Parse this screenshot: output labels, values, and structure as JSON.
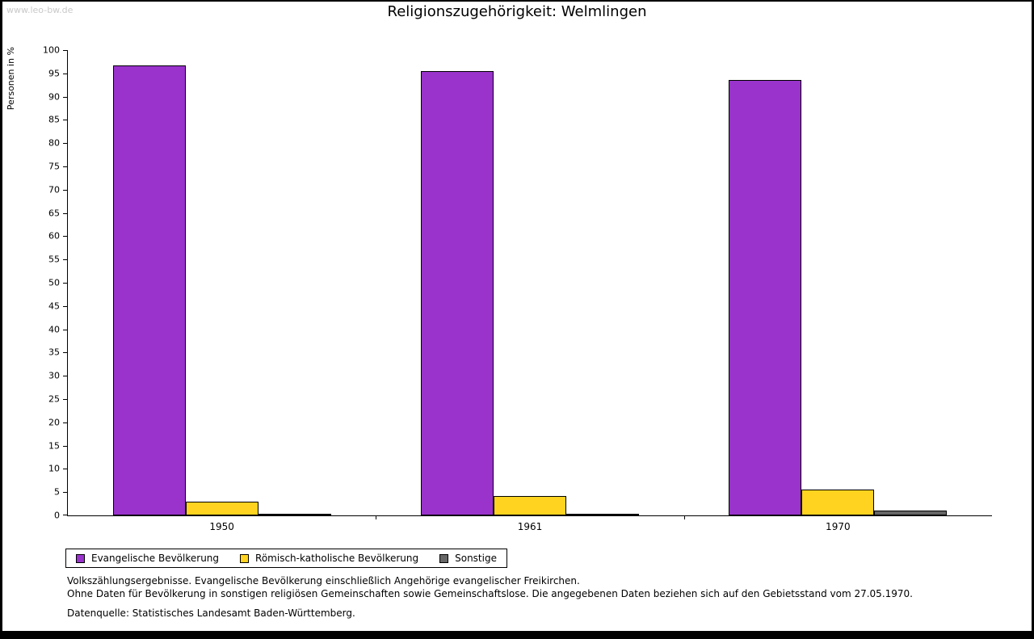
{
  "watermark": "www.leo-bw.de",
  "title": "Religionszugehörigkeit: Welmlingen",
  "chart_data": {
    "type": "bar",
    "title": "Religionszugehörigkeit: Welmlingen",
    "xlabel": "",
    "ylabel": "Personen in %",
    "ylim": [
      0,
      100
    ],
    "ytick_step": 5,
    "grid": false,
    "legend_position": "bottom-left",
    "categories": [
      "1950",
      "1961",
      "1970"
    ],
    "series": [
      {
        "name": "Evangelische Bevölkerung",
        "color": "#9933cc",
        "values": [
          96.7,
          95.5,
          93.5
        ]
      },
      {
        "name": "Römisch-katholische Bevölkerung",
        "color": "#ffd320",
        "values": [
          3.0,
          4.2,
          5.5
        ]
      },
      {
        "name": "Sonstige",
        "color": "#666666",
        "values": [
          0.3,
          0.3,
          1.0
        ]
      }
    ]
  },
  "footnotes": [
    "Volkszählungsergebnisse. Evangelische Bevölkerung einschließlich Angehörige evangelischer Freikirchen.",
    "Ohne Daten für Bevölkerung in sonstigen religiösen Gemeinschaften sowie Gemeinschaftslose. Die angegebenen Daten beziehen sich auf den Gebietsstand vom 27.05.1970.",
    "Datenquelle: Statistisches Landesamt Baden-Württemberg."
  ]
}
